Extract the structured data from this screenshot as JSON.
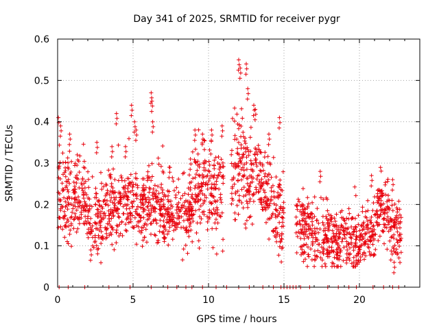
{
  "chart_data": {
    "type": "scatter",
    "title": "Day 341 of 2025, SRMTID for receiver pygr",
    "xlabel": "GPS time / hours",
    "ylabel": "SRMTID / TECUs",
    "xlim": [
      0,
      24
    ],
    "ylim": [
      0,
      0.6
    ],
    "x_ticks": [
      0,
      5,
      10,
      15,
      20
    ],
    "x_tick_labels": [
      "0",
      "5",
      "10",
      "15",
      "20"
    ],
    "y_ticks": [
      0,
      0.1,
      0.2,
      0.3,
      0.4,
      0.5,
      0.6
    ],
    "y_tick_labels": [
      "0",
      "0.1",
      "0.2",
      "0.3",
      "0.4",
      "0.5",
      "0.6"
    ],
    "grid": true,
    "marker": "+",
    "series": [
      {
        "name": "SRMTID",
        "color": "#e8000b",
        "note": "Dense scatter of ~2000 samples; segments summarize the visible point cloud (hour range, central value, spread, peak values).",
        "segments": [
          {
            "x0": 0.0,
            "x1": 1.0,
            "center": 0.22,
            "spread": 0.06,
            "peaks": [
              [
                0.05,
                0.41
              ],
              [
                0.2,
                0.39
              ],
              [
                0.8,
                0.37
              ]
            ]
          },
          {
            "x0": 1.0,
            "x1": 2.0,
            "center": 0.21,
            "spread": 0.05,
            "peaks": [
              [
                1.3,
                0.32
              ]
            ]
          },
          {
            "x0": 2.0,
            "x1": 3.0,
            "center": 0.17,
            "spread": 0.05,
            "peaks": [
              [
                2.6,
                0.35
              ],
              [
                2.2,
                0.09
              ]
            ]
          },
          {
            "x0": 3.0,
            "x1": 4.0,
            "center": 0.18,
            "spread": 0.05,
            "peaks": [
              [
                3.6,
                0.34
              ],
              [
                3.9,
                0.42
              ]
            ]
          },
          {
            "x0": 4.0,
            "x1": 5.0,
            "center": 0.2,
            "spread": 0.05,
            "peaks": [
              [
                4.5,
                0.34
              ],
              [
                4.9,
                0.44
              ]
            ]
          },
          {
            "x0": 5.0,
            "x1": 6.0,
            "center": 0.19,
            "spread": 0.05,
            "peaks": [
              [
                5.1,
                0.4
              ],
              [
                5.2,
                0.38
              ]
            ]
          },
          {
            "x0": 6.0,
            "x1": 7.0,
            "center": 0.2,
            "spread": 0.05,
            "peaks": [
              [
                6.2,
                0.47
              ],
              [
                6.25,
                0.45
              ],
              [
                6.3,
                0.4
              ]
            ]
          },
          {
            "x0": 7.0,
            "x1": 8.0,
            "center": 0.17,
            "spread": 0.04,
            "peaks": [
              [
                7.4,
                0.29
              ]
            ]
          },
          {
            "x0": 8.0,
            "x1": 9.0,
            "center": 0.18,
            "spread": 0.04,
            "peaks": [
              [
                8.8,
                0.31
              ]
            ]
          },
          {
            "x0": 9.0,
            "x1": 10.0,
            "center": 0.24,
            "spread": 0.06,
            "peaks": [
              [
                9.1,
                0.38
              ],
              [
                9.6,
                0.37
              ]
            ]
          },
          {
            "x0": 10.0,
            "x1": 11.0,
            "center": 0.22,
            "spread": 0.06,
            "peaks": [
              [
                10.2,
                0.38
              ],
              [
                10.9,
                0.39
              ]
            ]
          },
          {
            "x0": 11.5,
            "x1": 12.5,
            "center": 0.28,
            "spread": 0.07,
            "peaks": [
              [
                12.0,
                0.55
              ],
              [
                12.1,
                0.53
              ],
              [
                12.5,
                0.54
              ],
              [
                12.6,
                0.48
              ]
            ]
          },
          {
            "x0": 12.5,
            "x1": 13.5,
            "center": 0.25,
            "spread": 0.06,
            "peaks": [
              [
                13.0,
                0.44
              ],
              [
                13.1,
                0.43
              ]
            ]
          },
          {
            "x0": 13.5,
            "x1": 14.2,
            "center": 0.22,
            "spread": 0.05,
            "peaks": [
              [
                14.0,
                0.37
              ]
            ]
          },
          {
            "x0": 14.2,
            "x1": 15.0,
            "center": 0.18,
            "spread": 0.06,
            "peaks": [
              [
                14.7,
                0.41
              ]
            ]
          },
          {
            "x0": 15.8,
            "x1": 17.0,
            "center": 0.14,
            "spread": 0.04,
            "peaks": [
              [
                16.2,
                0.2
              ]
            ]
          },
          {
            "x0": 17.0,
            "x1": 18.5,
            "center": 0.12,
            "spread": 0.04,
            "peaks": [
              [
                17.4,
                0.28
              ]
            ]
          },
          {
            "x0": 18.5,
            "x1": 20.0,
            "center": 0.11,
            "spread": 0.04,
            "peaks": [
              [
                19.3,
                0.19
              ]
            ]
          },
          {
            "x0": 20.0,
            "x1": 21.0,
            "center": 0.12,
            "spread": 0.04,
            "peaks": [
              [
                20.8,
                0.27
              ]
            ]
          },
          {
            "x0": 21.0,
            "x1": 22.0,
            "center": 0.18,
            "spread": 0.04,
            "peaks": [
              [
                21.4,
                0.2
              ]
            ]
          },
          {
            "x0": 22.0,
            "x1": 22.8,
            "center": 0.13,
            "spread": 0.04,
            "peaks": [
              [
                22.2,
                0.26
              ],
              [
                22.3,
                0.06
              ]
            ]
          }
        ],
        "zero_values_x": [
          0.1,
          0.7,
          1.8,
          3.4,
          4.8,
          6.2,
          7.3,
          7.9,
          8.5,
          8.9,
          9.6,
          10.5,
          11.2,
          12.0,
          12.7,
          13.6,
          14.3,
          14.8,
          15.0,
          15.2,
          15.4,
          15.6,
          15.8,
          16.1,
          16.7,
          17.9,
          18.6,
          19.3,
          19.8,
          20.9,
          21.6,
          22.2,
          22.6
        ]
      }
    ]
  }
}
